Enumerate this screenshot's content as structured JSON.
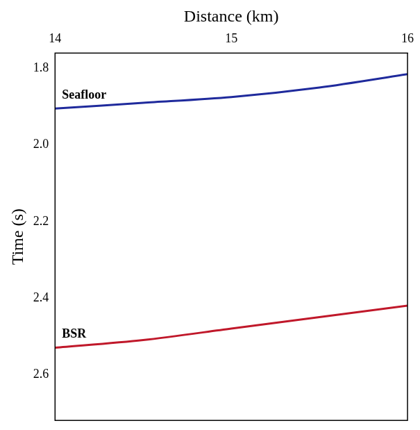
{
  "chart_data": {
    "type": "line",
    "x_label": "Distance (km)",
    "y_label": "Time (s)",
    "x": [
      14,
      14.5,
      15,
      15.5,
      16
    ],
    "series": [
      {
        "name": "Seafloor",
        "color": "#1f2a9c",
        "line_style": "solid",
        "values": [
          1.905,
          1.89,
          1.875,
          1.85,
          1.815
        ]
      },
      {
        "name": "BSR",
        "color": "#c0182a",
        "line_style": "solid",
        "values": [
          2.53,
          2.51,
          2.48,
          2.45,
          2.42
        ]
      }
    ],
    "marker": "none",
    "xlim": [
      14,
      16
    ],
    "xticks": [
      14,
      15,
      16
    ],
    "ylim": [
      1.76,
      2.72
    ],
    "yticks": [
      1.8,
      {
        "value": 2,
        "label": "2.0"
      },
      2.2,
      2.4,
      2.6
    ],
    "grid": false
  }
}
